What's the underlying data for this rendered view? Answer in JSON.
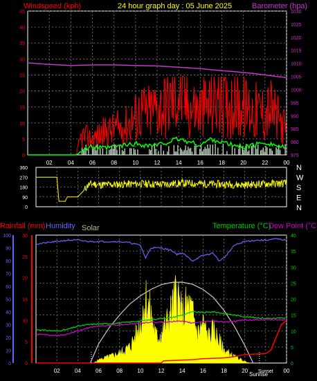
{
  "header": {
    "left_label": "Windspeed (kph)",
    "title": "24 hour graph day : 05 June 2025",
    "right_label": "Barometer (hpa)"
  },
  "bottom_header": {
    "rainfall_label": "Rainfall (mm)",
    "humidity_label": "Humidity",
    "solar_label": "Solar",
    "temperature_label": "Temperature (°C)",
    "dewpoint_label": "Dew Point (°C)"
  },
  "sun_labels": {
    "sunrise": "Sunrise",
    "sunset": "Sunset"
  },
  "colors": {
    "wind": "#ff0000",
    "gust": "#ff0000",
    "avg_wind": "#00ff00",
    "barometer": "#cc33cc",
    "direction": "#ffff00",
    "humidity": "#6666ff",
    "temperature": "#00cc00",
    "dewpoint": "#cc00cc",
    "rain": "#ff0000",
    "solar": "#ffff00",
    "solar_theory": "#cccccc",
    "grid": "#808080",
    "frame": "#ffffff"
  },
  "chart_data": [
    {
      "type": "line",
      "name": "wind-barometer",
      "x_ticks": [
        "02",
        "04",
        "06",
        "08",
        "10",
        "12",
        "14",
        "16",
        "18",
        "20",
        "22",
        "00"
      ],
      "xlim_hours": [
        0,
        24
      ],
      "y_left": {
        "label": "Windspeed (kph)",
        "ticks": [
          0,
          5,
          10,
          15,
          20,
          25,
          30,
          35,
          40,
          45
        ],
        "ylim": [
          0,
          45
        ]
      },
      "y_right": {
        "label": "Barometer (hpa)",
        "ticks": [
          975,
          980,
          985,
          990,
          995,
          1000,
          1005,
          1010,
          1015,
          1020,
          1025,
          1030
        ],
        "ylim": [
          975,
          1030
        ]
      },
      "series": [
        {
          "key": "barometer",
          "axis": "right",
          "x": [
            0,
            2,
            4,
            6,
            8,
            10,
            12,
            14,
            16,
            17,
            18,
            19,
            20,
            21,
            22,
            23,
            24
          ],
          "values": [
            1010.2,
            1009.6,
            1009.2,
            1009.4,
            1009.4,
            1009.2,
            1009.0,
            1008.5,
            1008.0,
            1007.6,
            1007.2,
            1006.9,
            1006.5,
            1006.1,
            1005.6,
            1005.0,
            1004.6
          ]
        },
        {
          "key": "wind",
          "axis": "left",
          "x": [
            0,
            4.5,
            5,
            6,
            7,
            8,
            9,
            10,
            10.5,
            11,
            12,
            13,
            13.5,
            14,
            14.5,
            15,
            16,
            17,
            17.5,
            18,
            19,
            20,
            21,
            22,
            22.5,
            23,
            23.5,
            24
          ],
          "values": [
            0,
            0,
            6,
            5,
            7,
            8,
            9,
            12,
            14,
            13,
            15,
            16,
            18,
            20,
            17,
            15,
            14,
            16,
            18,
            17,
            16,
            15,
            14,
            13,
            15,
            12,
            10,
            8
          ]
        },
        {
          "key": "avg_wind",
          "axis": "left",
          "x": [
            0,
            4.5,
            5,
            6,
            7,
            8,
            9,
            10,
            11,
            12,
            13,
            14,
            15,
            16,
            17,
            18,
            19,
            20,
            21,
            22,
            23,
            24
          ],
          "values": [
            0,
            0,
            1.5,
            2.5,
            2,
            2.5,
            3,
            3.5,
            3,
            3,
            4,
            5,
            4,
            3,
            5,
            4,
            3,
            2.5,
            3,
            4,
            3,
            2
          ]
        },
        {
          "key": "gust_bars_max",
          "axis": "left",
          "x": [
            10.3,
            12.5,
            14,
            16.2,
            18,
            20.5,
            23.5
          ],
          "values": [
            22,
            21,
            24,
            22,
            22,
            19,
            22
          ]
        }
      ]
    },
    {
      "type": "line",
      "name": "wind-direction",
      "y_ticks": [
        "360",
        "270",
        "180",
        "90",
        "0"
      ],
      "ylim": [
        0,
        360
      ],
      "direction_labels": [
        "N",
        "W",
        "S",
        "E",
        "N"
      ],
      "x": [
        0,
        2,
        2.2,
        2.8,
        3,
        4,
        4.5,
        5,
        5.5,
        6,
        8,
        10,
        12,
        14,
        16,
        18,
        20,
        22,
        24
      ],
      "values": [
        270,
        270,
        50,
        50,
        90,
        90,
        140,
        200,
        210,
        200,
        205,
        210,
        205,
        215,
        210,
        205,
        200,
        210,
        215
      ]
    },
    {
      "type": "line",
      "name": "temperature-humidity-rain-solar",
      "x_ticks": [
        "02",
        "04",
        "06",
        "08",
        "10",
        "12",
        "14",
        "16",
        "18",
        "20",
        "Sunset",
        "00"
      ],
      "xlim_hours": [
        0,
        24
      ],
      "y_humidity": {
        "label": "Humidity",
        "ticks": [
          0,
          10,
          20,
          30,
          40,
          50,
          60,
          70,
          80,
          90,
          100
        ],
        "ylim": [
          0,
          100
        ]
      },
      "y_rain": {
        "label": "Rainfall (mm)",
        "ticks": [
          0,
          5,
          10,
          15,
          20,
          25,
          30
        ],
        "ylim": [
          0,
          30
        ]
      },
      "y_temp": {
        "label": "Temperature (°C)",
        "ticks": [
          0,
          5,
          10,
          15,
          20,
          25,
          30,
          35,
          40
        ],
        "ylim": [
          0,
          40
        ]
      },
      "series": [
        {
          "key": "humidity",
          "x": [
            0,
            1,
            2,
            3,
            4,
            5,
            6,
            7,
            8,
            9,
            10,
            10.5,
            11,
            12,
            13,
            13.5,
            14,
            15,
            16,
            17,
            17.5,
            18,
            19,
            20,
            21,
            22,
            23,
            24
          ],
          "values": [
            93,
            94,
            95,
            96,
            96,
            95,
            95,
            95,
            95,
            94,
            92,
            82,
            90,
            90,
            88,
            85,
            86,
            80,
            84,
            86,
            80,
            82,
            92,
            95,
            96,
            96,
            97,
            96
          ]
        },
        {
          "key": "temperature",
          "x": [
            0,
            1,
            2,
            3,
            4,
            5,
            6,
            7,
            8,
            9,
            10,
            11,
            12,
            13,
            14,
            15,
            16,
            17,
            18,
            19,
            20,
            21,
            22,
            23,
            24
          ],
          "values": [
            10.5,
            10.2,
            10.0,
            10.5,
            11.5,
            12.0,
            12.2,
            12.3,
            12.5,
            12.8,
            13.2,
            13.5,
            14.0,
            14.2,
            15.0,
            16.0,
            15.8,
            16.0,
            15.5,
            15.0,
            14.5,
            14.2,
            14.0,
            14.0,
            14.0
          ]
        },
        {
          "key": "dewpoint",
          "x": [
            0,
            1,
            2,
            3,
            4,
            5,
            6,
            7,
            8,
            9,
            10,
            11,
            12,
            13,
            14,
            15,
            16,
            17,
            18,
            19,
            20,
            21,
            22,
            23,
            24
          ],
          "values": [
            9.0,
            8.8,
            8.5,
            9.0,
            10.0,
            11.0,
            11.5,
            11.8,
            12.0,
            12.2,
            12.5,
            12.7,
            12.8,
            13.0,
            13.0,
            12.5,
            13.0,
            13.2,
            12.8,
            13.0,
            13.5,
            13.5,
            13.5,
            13.5,
            13.5
          ]
        },
        {
          "key": "rain",
          "x": [
            0,
            12,
            12.2,
            15,
            16,
            18,
            19,
            20,
            22,
            22.5,
            23,
            23.5,
            24
          ],
          "values": [
            0,
            0,
            0.5,
            0.8,
            1.0,
            1.2,
            1.5,
            2.0,
            2.2,
            3,
            6,
            9,
            10
          ]
        },
        {
          "key": "solar_theory",
          "x": [
            5.2,
            6,
            7,
            8,
            9,
            10,
            11,
            12,
            13,
            14,
            15,
            16,
            17,
            18,
            19,
            20,
            20.8
          ],
          "values": [
            0,
            6,
            11,
            15,
            18.5,
            21,
            23,
            24.5,
            25.2,
            25.3,
            24.6,
            23,
            20.5,
            16.5,
            11.5,
            5.5,
            0
          ]
        },
        {
          "key": "solar",
          "x": [
            5.5,
            6,
            7,
            8,
            8.5,
            9,
            9.5,
            10,
            10.5,
            11,
            11.5,
            12,
            12.5,
            13,
            13.5,
            14,
            14.5,
            15,
            15.5,
            16,
            16.5,
            17,
            17.5,
            18,
            19,
            20,
            20.5
          ],
          "values": [
            0,
            1,
            2,
            3,
            4,
            5,
            8,
            12,
            20,
            15,
            8,
            9,
            12,
            16,
            22,
            14,
            18,
            15,
            9,
            12,
            8,
            10,
            7,
            4,
            2,
            0.5,
            0
          ]
        }
      ]
    }
  ]
}
